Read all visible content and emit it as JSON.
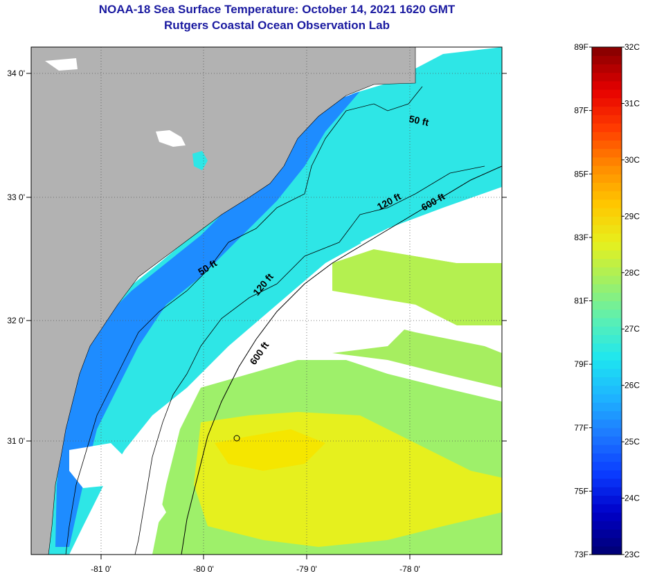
{
  "header": {
    "title": "NOAA-18 Sea Surface Temperature:  October 14, 2021 1620 GMT",
    "subtitle": "Rutgers Coastal Ocean Observation Lab"
  },
  "map": {
    "lon_ticks": [
      "-81 0'",
      "-80 0'",
      "-79 0'",
      "-78 0'"
    ],
    "lat_ticks": [
      "34 0'",
      "33 0'",
      "32 0'",
      "31 0'"
    ],
    "contours": [
      {
        "label": "50 ft"
      },
      {
        "label": "120 ft"
      },
      {
        "label": "600 ft"
      }
    ]
  },
  "colorbar": {
    "fahrenheit": [
      "89F",
      "87F",
      "85F",
      "83F",
      "81F",
      "79F",
      "77F",
      "75F",
      "73F"
    ],
    "celsius": [
      "32C",
      "31C",
      "30C",
      "29C",
      "28C",
      "27C",
      "26C",
      "25C",
      "24C",
      "23C"
    ],
    "colors": [
      "#00007a",
      "#0000c8",
      "#0a3cff",
      "#1e78ff",
      "#1eb4ff",
      "#1ee6f0",
      "#5af0b4",
      "#a0f064",
      "#e6f01e",
      "#ffc800",
      "#ff8c00",
      "#ff3c00",
      "#e60000",
      "#8c0000"
    ]
  }
}
